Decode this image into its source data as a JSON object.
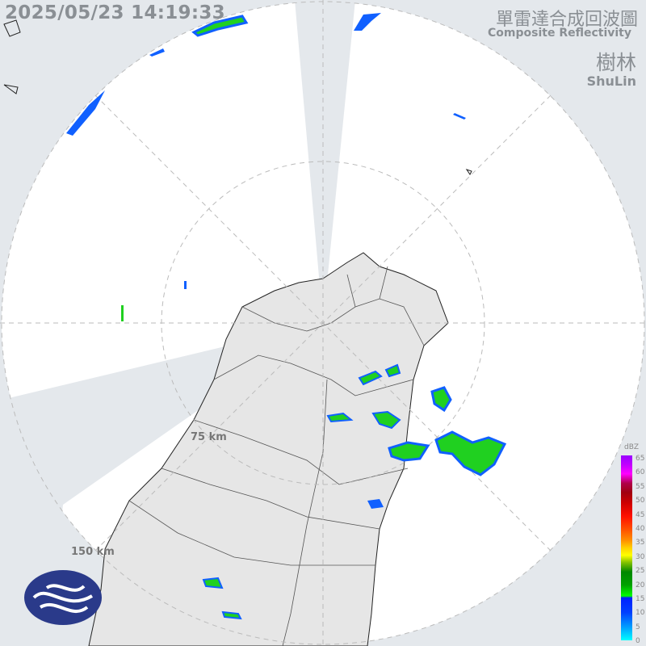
{
  "header": {
    "timestamp": "2025/05/23 14:19:33",
    "title_zh": "單雷達合成回波圖",
    "title_en": "Composite Reflectivity",
    "station_zh": "樹林",
    "station_en": "ShuLin"
  },
  "range_rings": [
    "75 km",
    "150 km"
  ],
  "legend": {
    "unit": "dBZ",
    "ticks": [
      "65",
      "60",
      "55",
      "50",
      "45",
      "40",
      "35",
      "30",
      "25",
      "20",
      "15",
      "10",
      "5",
      "0"
    ]
  },
  "colors": {
    "background": "#e4e8ec",
    "coverage": "#ffffff",
    "land": "#e6e6e6",
    "weak_echo": "#1060ff",
    "moderate_echo": "#20d020",
    "logo": "#2a3a8a"
  },
  "logo": {
    "icon": "cwa-logo"
  }
}
